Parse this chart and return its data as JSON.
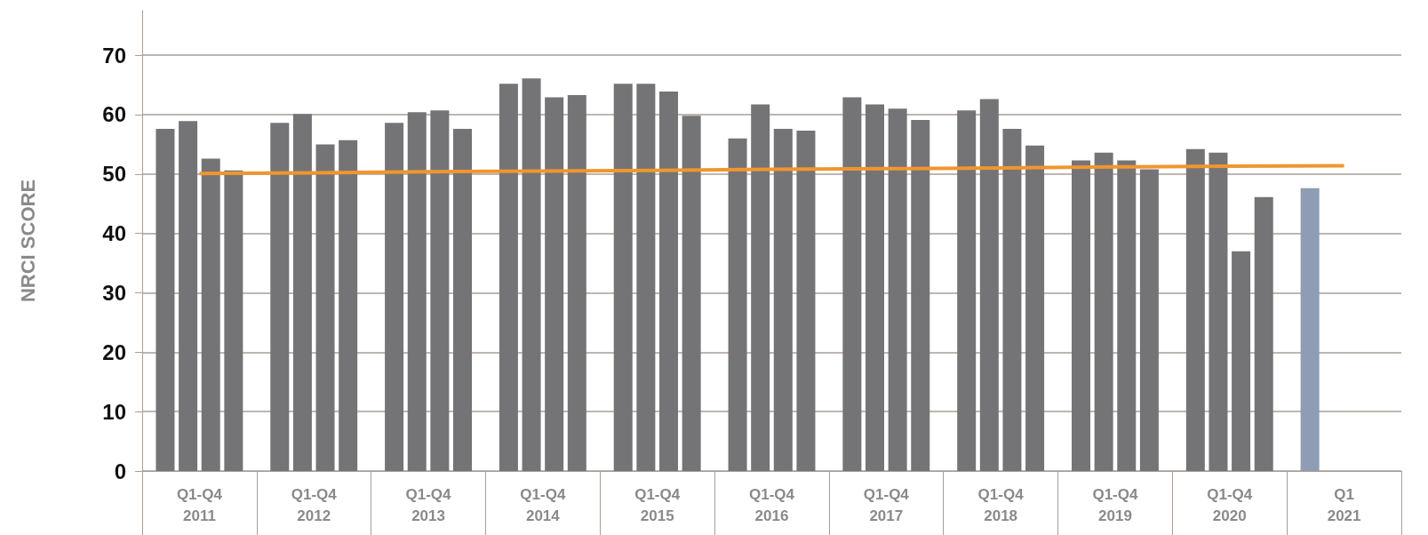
{
  "chart_data": {
    "type": "bar",
    "ylabel": "NRCI SCORE",
    "categories": [
      "Q1-Q4\n2011",
      "Q1-Q4\n2012",
      "Q1-Q4\n2013",
      "Q1-Q4\n2014",
      "Q1-Q4\n2015",
      "Q1-Q4\n2016",
      "Q1-Q4\n2017",
      "Q1-Q4\n2018",
      "Q1-Q4\n2019",
      "Q1-Q4\n2020",
      "Q1\n2021"
    ],
    "series": [
      {
        "color": "#747476",
        "colors": [
          "#747476",
          "#747476",
          "#747476",
          "#747476",
          "#747476",
          "#747476",
          "#747476",
          "#747476",
          "#747476",
          "#747476",
          "#8e9db5"
        ],
        "values": [
          57.6,
          58.6,
          58.6,
          65.2,
          65.2,
          56.0,
          62.9,
          60.7,
          52.3,
          54.2,
          47.6
        ]
      },
      {
        "color": "#747476",
        "values": [
          58.9,
          60.1,
          60.4,
          66.1,
          65.2,
          61.7,
          61.7,
          62.6,
          53.6,
          53.6,
          null
        ]
      },
      {
        "color": "#747476",
        "values": [
          52.6,
          55.0,
          60.7,
          62.9,
          63.9,
          57.6,
          61.0,
          57.6,
          52.3,
          37.0,
          null
        ]
      },
      {
        "color": "#747476",
        "values": [
          50.6,
          55.7,
          57.6,
          63.3,
          59.8,
          57.3,
          59.1,
          54.8,
          50.8,
          46.1,
          null
        ]
      },
      {
        "type": "line",
        "color": "#f0962e",
        "marker": "none",
        "values": [
          50.1,
          50.2,
          50.4,
          50.5,
          50.6,
          50.8,
          50.9,
          51.0,
          51.2,
          51.3,
          51.4
        ]
      }
    ],
    "ylim": [
      0,
      77.5
    ],
    "yticks": [
      0,
      10,
      20,
      30,
      40,
      50,
      60,
      70
    ],
    "grid": "y"
  }
}
